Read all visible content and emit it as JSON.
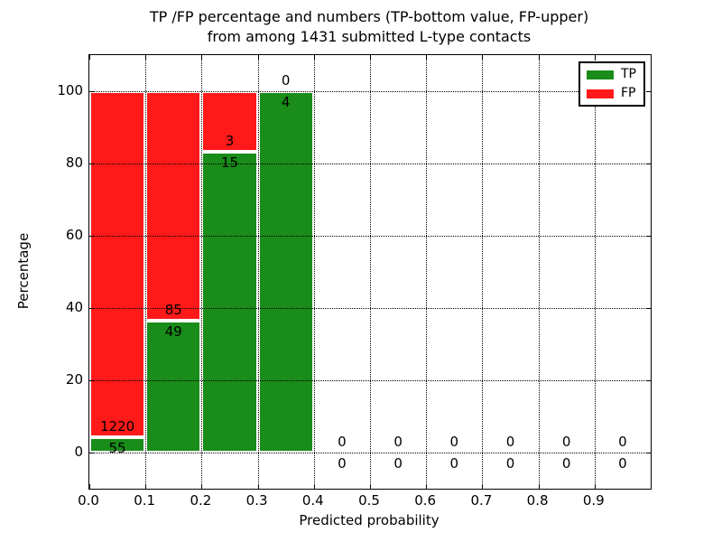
{
  "figure": {
    "title_line1": "TP /FP percentage and numbers (TP-bottom value, FP-upper)",
    "title_line2": "from among 1431 submitted L-type contacts"
  },
  "chart_data": {
    "type": "bar",
    "stacked": true,
    "title": "TP /FP percentage and numbers (TP-bottom value, FP-upper) from among 1431 submitted L-type contacts",
    "xlabel": "Predicted probability",
    "ylabel": "Percentage",
    "xlim": [
      0.0,
      1.0
    ],
    "ylim": [
      -10,
      110
    ],
    "grid": "dotted",
    "legend_position": "upper right",
    "legend": [
      {
        "name": "TP",
        "color": "#198c19"
      },
      {
        "name": "FP",
        "color": "#ff1919"
      }
    ],
    "colors": {
      "tp": "#198c19",
      "fp": "#ff1919",
      "bar_edge": "#ffffff",
      "grid": "#000000"
    },
    "yticks": [
      {
        "v": 0,
        "label": "0"
      },
      {
        "v": 20,
        "label": "20"
      },
      {
        "v": 40,
        "label": "40"
      },
      {
        "v": 60,
        "label": "60"
      },
      {
        "v": 80,
        "label": "80"
      },
      {
        "v": 100,
        "label": "100"
      }
    ],
    "xticks": [
      {
        "v": 0.0,
        "label": "0.0"
      },
      {
        "v": 0.1,
        "label": "0.1"
      },
      {
        "v": 0.2,
        "label": "0.2"
      },
      {
        "v": 0.3,
        "label": "0.3"
      },
      {
        "v": 0.4,
        "label": "0.4"
      },
      {
        "v": 0.5,
        "label": "0.5"
      },
      {
        "v": 0.6,
        "label": "0.6"
      },
      {
        "v": 0.7,
        "label": "0.7"
      },
      {
        "v": 0.8,
        "label": "0.8"
      },
      {
        "v": 0.9,
        "label": "0.9"
      }
    ],
    "bins": [
      {
        "x0": 0.0,
        "x1": 0.1,
        "tp_count": 55,
        "fp_count": 1220
      },
      {
        "x0": 0.1,
        "x1": 0.2,
        "tp_count": 49,
        "fp_count": 85
      },
      {
        "x0": 0.2,
        "x1": 0.3,
        "tp_count": 15,
        "fp_count": 3
      },
      {
        "x0": 0.3,
        "x1": 0.4,
        "tp_count": 4,
        "fp_count": 0
      },
      {
        "x0": 0.4,
        "x1": 0.5,
        "tp_count": 0,
        "fp_count": 0
      },
      {
        "x0": 0.5,
        "x1": 0.6,
        "tp_count": 0,
        "fp_count": 0
      },
      {
        "x0": 0.6,
        "x1": 0.7,
        "tp_count": 0,
        "fp_count": 0
      },
      {
        "x0": 0.7,
        "x1": 0.8,
        "tp_count": 0,
        "fp_count": 0
      },
      {
        "x0": 0.8,
        "x1": 0.9,
        "tp_count": 0,
        "fp_count": 0
      },
      {
        "x0": 0.9,
        "x1": 1.0,
        "tp_count": 0,
        "fp_count": 0
      }
    ]
  }
}
